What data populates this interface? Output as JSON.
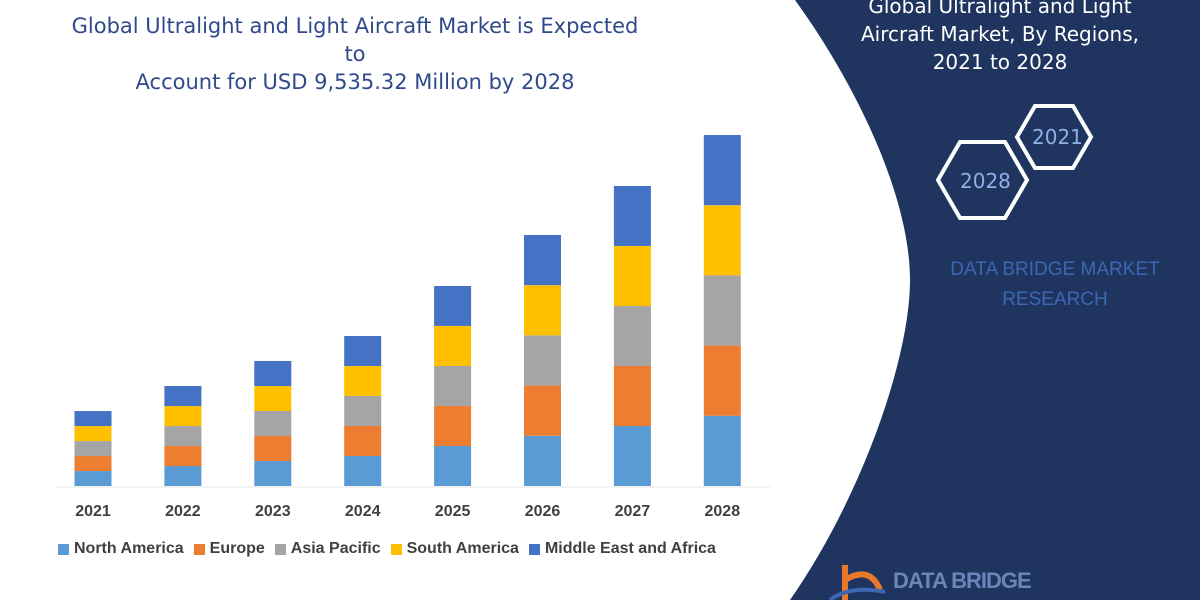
{
  "title_line1": "Global Ultralight and Light Aircraft Market is Expected to",
  "title_line2": "Account for USD 9,535.32 Million by 2028",
  "side_panel": {
    "title_line1": "Global Ultralight and Light",
    "title_line2": "Aircraft Market, By Regions,",
    "title_line3": "2021 to 2028",
    "hex_1": "2021",
    "hex_2": "2028",
    "brand_line1": "DATA BRIDGE MARKET",
    "brand_line2": "RESEARCH",
    "logo_text": "DATA BRIDGE",
    "background_color": "#1f3560"
  },
  "chart_data": {
    "type": "bar",
    "stacked": true,
    "categories": [
      "2021",
      "2022",
      "2023",
      "2024",
      "2025",
      "2026",
      "2027",
      "2028"
    ],
    "series": [
      {
        "name": "North America",
        "color": "#5b9bd5",
        "values": [
          407,
          543,
          679,
          815,
          1087,
          1364,
          1630,
          1907
        ]
      },
      {
        "name": "Europe",
        "color": "#ed7d31",
        "values": [
          407,
          543,
          679,
          815,
          1087,
          1364,
          1630,
          1907
        ]
      },
      {
        "name": "Asia Pacific",
        "color": "#a5a5a5",
        "values": [
          407,
          543,
          679,
          815,
          1087,
          1364,
          1630,
          1907
        ]
      },
      {
        "name": "South America",
        "color": "#ffc000",
        "values": [
          407,
          543,
          679,
          815,
          1087,
          1364,
          1630,
          1907
        ]
      },
      {
        "name": "Middle East and Africa",
        "color": "#4472c4",
        "values": [
          408,
          545,
          680,
          815,
          1085,
          1363,
          1630,
          1907
        ]
      }
    ],
    "xlabel": "",
    "ylabel": "",
    "y_axis_shown": false,
    "grid": false,
    "legend_placement": "bottom"
  }
}
